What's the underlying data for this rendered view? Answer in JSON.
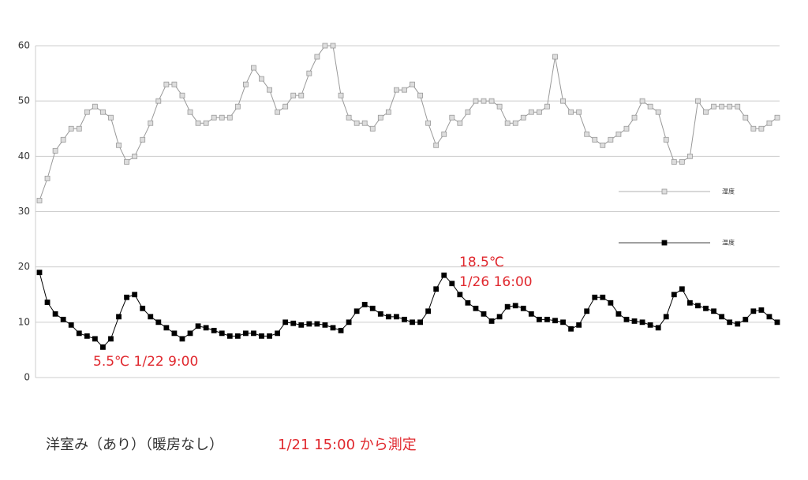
{
  "chart_data": {
    "type": "line",
    "ylim": [
      0,
      60
    ],
    "yticks": [
      0,
      10,
      20,
      30,
      40,
      50,
      60
    ],
    "grid": true,
    "series": [
      {
        "name": "湿度",
        "color": "#999999",
        "marker_fill": "#dddddd",
        "values": [
          32,
          36,
          41,
          43,
          45,
          45,
          48,
          49,
          48,
          47,
          42,
          39,
          40,
          43,
          46,
          50,
          53,
          53,
          51,
          48,
          46,
          46,
          47,
          47,
          47,
          49,
          53,
          56,
          54,
          52,
          48,
          49,
          51,
          51,
          55,
          58,
          60,
          60,
          51,
          47,
          46,
          46,
          45,
          47,
          48,
          52,
          52,
          53,
          51,
          46,
          42,
          44,
          47,
          46,
          48,
          50,
          50,
          50,
          49,
          46,
          46,
          47,
          48,
          48,
          49,
          58,
          50,
          48,
          48,
          44,
          43,
          42,
          43,
          44,
          45,
          47,
          50,
          49,
          48,
          43,
          39,
          39,
          40,
          50,
          48,
          49,
          49,
          49,
          49,
          47,
          45,
          45,
          46,
          47
        ]
      },
      {
        "name": "温度",
        "color": "#000000",
        "marker_fill": "#000000",
        "values": [
          19,
          13.6,
          11.5,
          10.5,
          9.5,
          8,
          7.5,
          7,
          5.5,
          7,
          11,
          14.5,
          15,
          12.5,
          11,
          10,
          9,
          8,
          7,
          8,
          9.3,
          9,
          8.5,
          8,
          7.5,
          7.5,
          8,
          8,
          7.5,
          7.5,
          8,
          10,
          9.8,
          9.5,
          9.7,
          9.7,
          9.5,
          9,
          8.5,
          10,
          12,
          13.2,
          12.5,
          11.5,
          11,
          11,
          10.5,
          10,
          10,
          12,
          16,
          18.5,
          17,
          15,
          13.5,
          12.5,
          11.5,
          10.2,
          11,
          12.8,
          13,
          12.5,
          11.5,
          10.5,
          10.5,
          10.3,
          10,
          8.8,
          9.5,
          12,
          14.5,
          14.5,
          13.5,
          11.5,
          10.5,
          10.2,
          10,
          9.5,
          9,
          11,
          15,
          16,
          13.5,
          13,
          12.5,
          12,
          11,
          10,
          9.7,
          10.5,
          12,
          12.2,
          11,
          10
        ]
      }
    ],
    "annotations": [
      "18.5℃",
      "1/26 16:00",
      "5.5℃  1/22 9:00"
    ],
    "caption": "洋室み（あり）（暖房なし）",
    "note": "1/21 15:00 から測定"
  }
}
